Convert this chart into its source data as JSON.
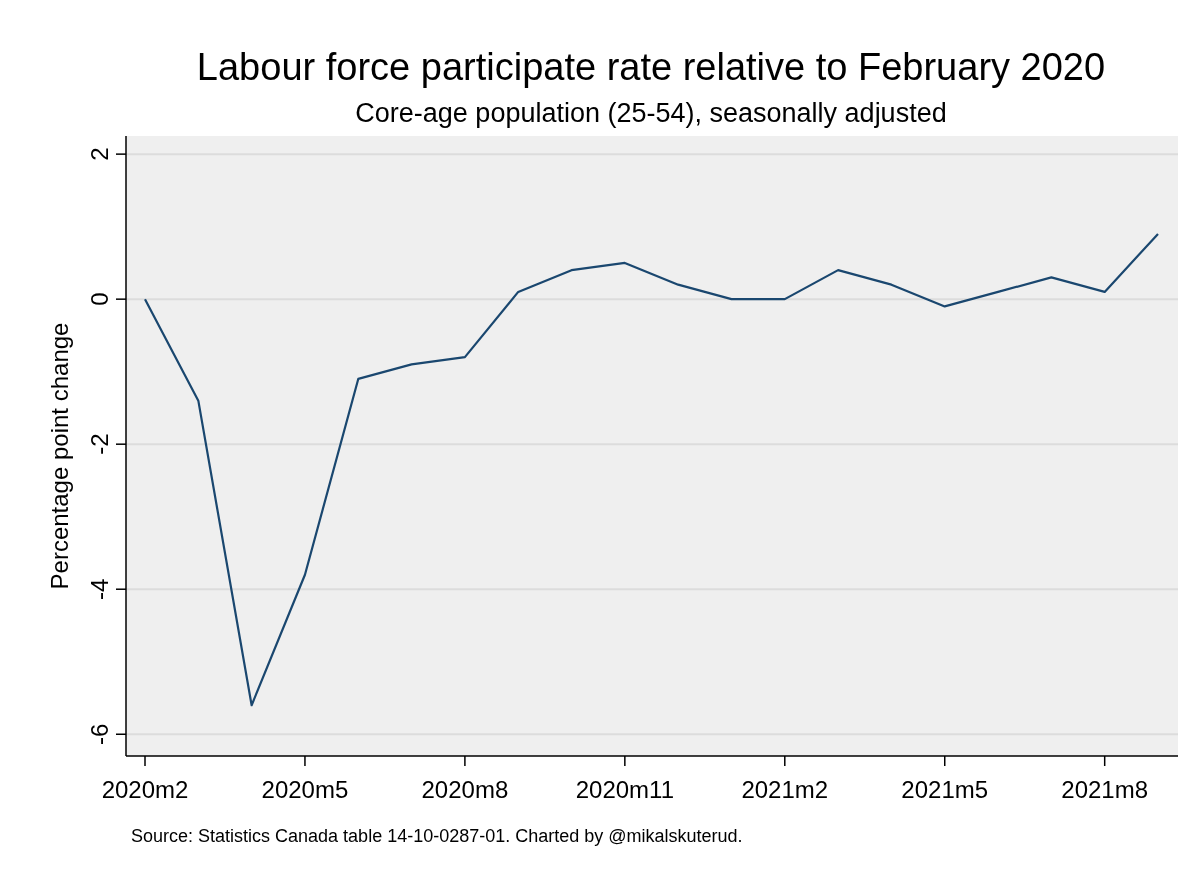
{
  "chart_data": {
    "type": "line",
    "title": "Labour force participate rate relative to February 2020",
    "subtitle": "Core-age population (25-54), seasonally adjusted",
    "ylabel": "Percentage point change",
    "categories": [
      "2020m2",
      null,
      null,
      "2020m5",
      null,
      null,
      "2020m8",
      null,
      null,
      "2020m11",
      null,
      null,
      "2021m2",
      null,
      null,
      "2021m5",
      null,
      null,
      "2021m8",
      null
    ],
    "series": [
      {
        "color": "#1a476f",
        "values": [
          0,
          -1.4,
          -5.6,
          -3.8,
          -1.1,
          -0.9,
          -0.8,
          0.1,
          0.4,
          0.5,
          0.2,
          0,
          0,
          0.4,
          0.2,
          -0.1,
          0.1,
          0.3,
          0.1,
          0.9
        ]
      }
    ],
    "ylim": [
      -6.3,
      2.25
    ],
    "yticks": [
      -6,
      -4,
      -2,
      0,
      2
    ],
    "grid": "y",
    "annotations": [
      "Source: Statistics Canada table 14-10-0287-01. Charted by @mikalskuterud."
    ]
  }
}
